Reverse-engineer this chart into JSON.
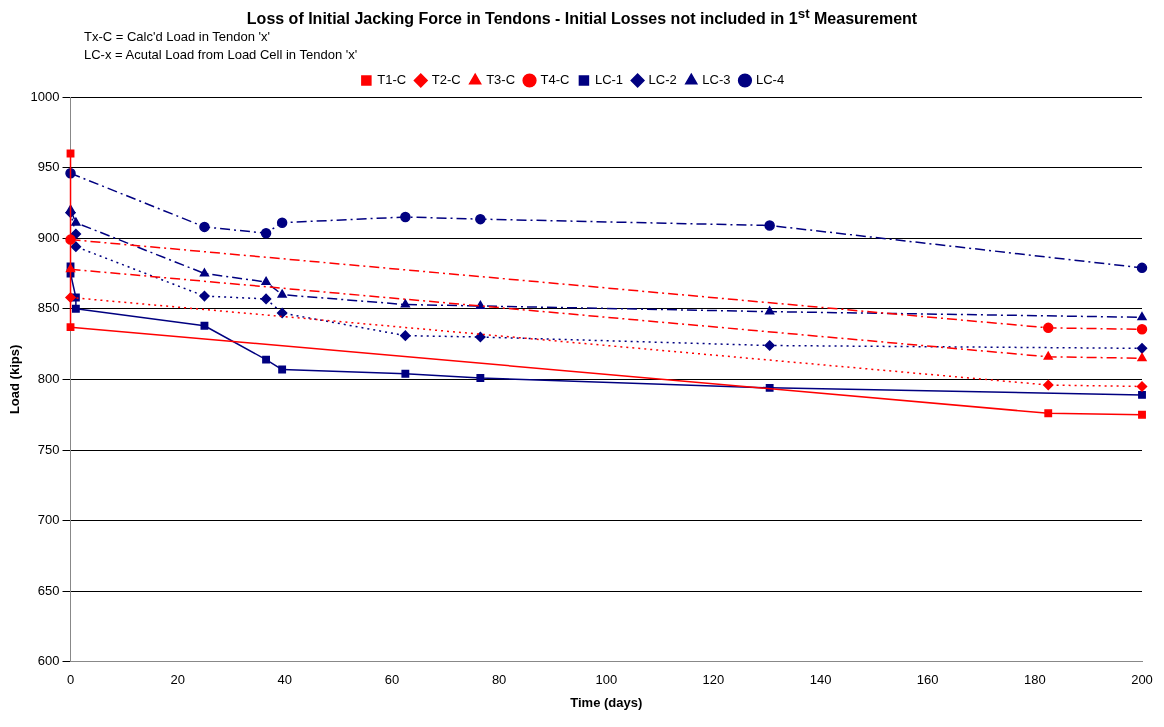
{
  "chart_data": {
    "type": "line",
    "title": "Loss of Initial Jacking Force in Tendons - Initial Losses not included in 1$^{st}$  Measurement",
    "annotations": [
      "Tx-C = Calc'd Load in Tendon 'x'",
      "LC-x = Acutal Load from Load Cell in Tendon 'x'"
    ],
    "xlabel": "Time (days)",
    "ylabel": "Load (kips)",
    "xlim": [
      0,
      200
    ],
    "xticks": [
      0,
      20,
      40,
      60,
      80,
      100,
      120,
      140,
      160,
      180,
      200
    ],
    "ylim": [
      600,
      1000
    ],
    "yticks": [
      600,
      650,
      700,
      750,
      800,
      850,
      900,
      950,
      1000
    ],
    "grid": "y",
    "legend": "top",
    "series": [
      {
        "name": "T1-C",
        "color": "#ff0000",
        "marker": "square",
        "line_style": "solid",
        "x": [
          0,
          0,
          182.5,
          200
        ],
        "values": [
          960,
          837,
          776,
          775
        ]
      },
      {
        "name": "T2-C",
        "color": "#ff0000",
        "marker": "diamond",
        "line_style": "dotted",
        "x": [
          0,
          182.5,
          200
        ],
        "values": [
          858,
          796,
          795
        ]
      },
      {
        "name": "T3-C",
        "color": "#ff0000",
        "marker": "triangle",
        "line_style": "dashed",
        "x": [
          0,
          182.5,
          200
        ],
        "values": [
          878,
          816,
          815
        ]
      },
      {
        "name": "T4-C",
        "color": "#ff0000",
        "marker": "circle",
        "line_style": "dashed",
        "x": [
          0,
          182.5,
          200
        ],
        "values": [
          899,
          836.5,
          835.5
        ]
      },
      {
        "name": "LC-1",
        "color": "#000080",
        "marker": "square",
        "line_style": "solid",
        "x": [
          0,
          0,
          1,
          1,
          25,
          36.5,
          39.5,
          62.5,
          76.5,
          130.5,
          200
        ],
        "values": [
          880,
          875,
          858,
          850,
          838,
          814,
          807,
          804,
          801,
          794,
          789
        ]
      },
      {
        "name": "LC-2",
        "color": "#000080",
        "marker": "diamond",
        "line_style": "dotted",
        "x": [
          0,
          1,
          1,
          25,
          36.5,
          39.5,
          62.5,
          76.5,
          130.5,
          200
        ],
        "values": [
          918,
          903,
          894,
          859,
          857,
          847,
          831,
          830,
          824,
          822
        ]
      },
      {
        "name": "LC-3",
        "color": "#000080",
        "marker": "triangle",
        "line_style": "dashed",
        "x": [
          0,
          1,
          25,
          36.5,
          39.5,
          62.5,
          76.5,
          130.5,
          200
        ],
        "values": [
          920,
          911,
          875,
          869,
          860,
          853,
          852,
          848,
          844
        ]
      },
      {
        "name": "LC-4",
        "color": "#000080",
        "marker": "circle",
        "line_style": "dashed",
        "x": [
          0,
          25,
          36.5,
          39.5,
          62.5,
          76.5,
          130.5,
          200
        ],
        "values": [
          946,
          908,
          903.5,
          911,
          915,
          913.5,
          909,
          879
        ]
      }
    ]
  }
}
